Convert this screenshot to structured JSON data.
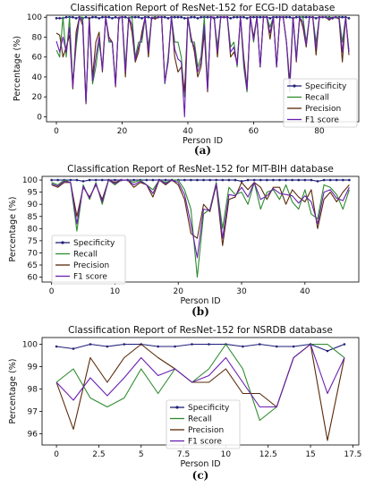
{
  "chart_data": [
    {
      "type": "line",
      "panel_label": "(a)",
      "title": "Classification Report of ResNet-152 for ECG-ID database",
      "xlabel": "Person ID",
      "ylabel": "Percentage (%)",
      "xlim": [
        -3,
        92
      ],
      "ylim": [
        -5,
        102
      ],
      "xticks": [
        0,
        20,
        40,
        60,
        80
      ],
      "yticks": [
        0,
        20,
        40,
        60,
        80,
        100
      ],
      "legend_position": "lower-right",
      "series": [
        {
          "name": "Specificity",
          "color": "#1f1f7a",
          "marker": true,
          "values": [
            99,
            99,
            99,
            100,
            100,
            100,
            99,
            100,
            99,
            100,
            99,
            100,
            100,
            99,
            100,
            100,
            100,
            99,
            100,
            99,
            100,
            100,
            99,
            100,
            100,
            100,
            99,
            100,
            100,
            99,
            100,
            100,
            100,
            100,
            99,
            100,
            100,
            100,
            100,
            99,
            99,
            100,
            100,
            99,
            100,
            100,
            100,
            100,
            99,
            100,
            100,
            100,
            100,
            99,
            100,
            100,
            100,
            100,
            99,
            100,
            100,
            100,
            100,
            100,
            100,
            99,
            100,
            100,
            100,
            100,
            100,
            100,
            99,
            100,
            100,
            100,
            100,
            100,
            100,
            99,
            100,
            100,
            100,
            100,
            99,
            100,
            100,
            100,
            100,
            99
          ]
        },
        {
          "name": "Recall",
          "color": "#2e8b2e",
          "values": [
            67,
            60,
            100,
            60,
            100,
            33,
            70,
            100,
            100,
            15,
            95,
            33,
            50,
            75,
            50,
            100,
            75,
            75,
            33,
            100,
            100,
            50,
            100,
            100,
            60,
            75,
            75,
            100,
            70,
            100,
            100,
            100,
            100,
            33,
            60,
            100,
            75,
            75,
            60,
            20,
            100,
            75,
            75,
            50,
            60,
            100,
            30,
            100,
            100,
            70,
            100,
            100,
            100,
            70,
            75,
            50,
            100,
            50,
            25,
            100,
            75,
            100,
            50,
            100,
            100,
            90,
            100,
            50,
            100,
            100,
            75,
            25,
            100,
            60,
            100,
            100,
            75,
            100,
            100,
            75,
            100,
            100,
            100,
            100,
            100,
            100,
            100,
            75,
            100,
            67
          ]
        },
        {
          "name": "Precision",
          "color": "#5a2a0a",
          "values": [
            84,
            82,
            60,
            70,
            82,
            28,
            85,
            100,
            92,
            13,
            100,
            40,
            75,
            85,
            45,
            100,
            80,
            75,
            30,
            100,
            100,
            40,
            100,
            85,
            55,
            65,
            85,
            100,
            60,
            100,
            98,
            100,
            100,
            35,
            55,
            100,
            60,
            45,
            50,
            25,
            100,
            80,
            65,
            40,
            50,
            85,
            25,
            100,
            100,
            60,
            100,
            100,
            100,
            60,
            65,
            55,
            100,
            60,
            30,
            100,
            80,
            100,
            50,
            100,
            100,
            78,
            100,
            50,
            100,
            100,
            75,
            35,
            100,
            55,
            100,
            90,
            70,
            100,
            100,
            62,
            100,
            100,
            100,
            97,
            100,
            100,
            98,
            55,
            100,
            62
          ]
        },
        {
          "name": "F1 score",
          "color": "#6a1fb0",
          "values": [
            76,
            65,
            80,
            65,
            90,
            30,
            77,
            100,
            96,
            14,
            97,
            36,
            60,
            80,
            47,
            100,
            77,
            75,
            31,
            100,
            100,
            45,
            100,
            92,
            57,
            70,
            80,
            100,
            65,
            100,
            99,
            100,
            100,
            34,
            57,
            100,
            68,
            58,
            55,
            0,
            100,
            78,
            70,
            45,
            55,
            92,
            27,
            100,
            100,
            65,
            100,
            100,
            100,
            65,
            70,
            52,
            100,
            55,
            27,
            100,
            77,
            100,
            50,
            100,
            100,
            84,
            100,
            50,
            100,
            100,
            75,
            30,
            100,
            57,
            100,
            95,
            72,
            100,
            100,
            68,
            100,
            100,
            100,
            98,
            100,
            100,
            99,
            65,
            100,
            65
          ]
        }
      ]
    },
    {
      "type": "line",
      "panel_label": "(b)",
      "title": "Classification Report of ResNet-152 for MIT-BIH database",
      "xlabel": "Person ID",
      "ylabel": "Percentage (%)",
      "xlim": [
        -1.5,
        48.5
      ],
      "ylim": [
        58,
        101.5
      ],
      "xticks": [
        0,
        10,
        20,
        30,
        40
      ],
      "yticks": [
        60,
        65,
        70,
        75,
        80,
        85,
        90,
        95,
        100
      ],
      "legend_position": "left",
      "series": [
        {
          "name": "Specificity",
          "color": "#1f1f7a",
          "marker": true,
          "values": [
            100,
            100,
            100,
            100,
            100,
            99.5,
            100,
            100,
            100,
            100,
            100,
            100,
            100,
            100,
            100,
            100,
            100,
            100,
            100,
            100,
            100,
            100,
            100,
            100,
            100,
            100,
            100,
            100,
            100,
            100,
            99.5,
            100,
            100,
            100,
            100,
            100,
            100,
            100,
            100,
            100,
            100,
            100,
            99.5,
            100,
            100,
            100,
            100,
            100
          ]
        },
        {
          "name": "Recall",
          "color": "#2e8b2e",
          "values": [
            99,
            98,
            100,
            99,
            79,
            98,
            92,
            99,
            90,
            100,
            98,
            100,
            100,
            99,
            100,
            98,
            96,
            100,
            99,
            100,
            100,
            96,
            88,
            60,
            86,
            88,
            99,
            80,
            97,
            94,
            95,
            90,
            99,
            88,
            95,
            96,
            92,
            98,
            91,
            88,
            96,
            86,
            84,
            98,
            97,
            94,
            88,
            96
          ]
        },
        {
          "name": "Precision",
          "color": "#5a2a0a",
          "values": [
            98,
            97,
            99,
            99,
            85,
            97,
            93,
            98,
            92,
            100,
            99,
            100,
            100,
            97,
            99,
            98,
            93,
            100,
            98,
            100,
            98,
            92,
            78,
            76,
            90,
            87,
            98,
            73,
            92,
            93,
            99,
            96,
            99,
            97,
            92,
            97,
            97,
            90,
            96,
            93,
            91,
            96,
            80,
            92,
            95,
            91,
            95,
            98
          ]
        },
        {
          "name": "F1 score",
          "color": "#6a1fb0",
          "values": [
            98.5,
            97.5,
            99.5,
            99,
            82,
            97.5,
            92.5,
            98.5,
            91,
            100,
            98.5,
            100,
            100,
            98,
            99.5,
            98,
            94.5,
            100,
            98.5,
            100,
            99,
            94,
            82,
            68,
            88,
            87.5,
            98.5,
            76,
            94,
            93.5,
            97,
            93,
            99,
            92,
            93.5,
            96.5,
            94.5,
            94,
            93.5,
            90.5,
            93.5,
            91,
            82,
            95,
            96,
            92.5,
            91.5,
            97
          ]
        }
      ]
    },
    {
      "type": "line",
      "panel_label": "(c)",
      "title": "Classification Report of ResNet-152 for NSRDB database",
      "xlabel": "Person ID",
      "ylabel": "Percentage (%)",
      "xlim": [
        -0.85,
        17.85
      ],
      "ylim": [
        95.5,
        100.3
      ],
      "xticks": [
        0.0,
        2.5,
        5.0,
        7.5,
        10.0,
        12.5,
        15.0,
        17.5
      ],
      "yticks": [
        96,
        97,
        98,
        99,
        100
      ],
      "legend_position": "center-right",
      "series": [
        {
          "name": "Specificity",
          "color": "#1f1f7a",
          "marker": true,
          "values": [
            99.9,
            99.8,
            100,
            99.9,
            100,
            100,
            99.9,
            99.9,
            100,
            100,
            100,
            99.9,
            100,
            99.9,
            99.9,
            100,
            99.7,
            100
          ]
        },
        {
          "name": "Recall",
          "color": "#2e8b2e",
          "values": [
            98.3,
            98.9,
            97.6,
            97.2,
            97.6,
            98.9,
            97.8,
            98.9,
            98.3,
            98.9,
            100,
            98.9,
            96.6,
            97.2,
            99.4,
            100,
            100,
            99.4
          ]
        },
        {
          "name": "Precision",
          "color": "#5a2a0a",
          "values": [
            98.3,
            96.2,
            99.4,
            98.3,
            99.4,
            100,
            99.4,
            98.9,
            98.3,
            98.3,
            98.9,
            97.8,
            97.8,
            97.2,
            99.4,
            100,
            95.7,
            99.4
          ]
        },
        {
          "name": "F1 score",
          "color": "#6a1fb0",
          "values": [
            98.3,
            97.5,
            98.5,
            97.7,
            98.5,
            99.4,
            98.6,
            98.9,
            98.3,
            98.6,
            99.4,
            98.3,
            97.2,
            97.2,
            99.4,
            100,
            97.8,
            99.4
          ]
        }
      ]
    }
  ]
}
